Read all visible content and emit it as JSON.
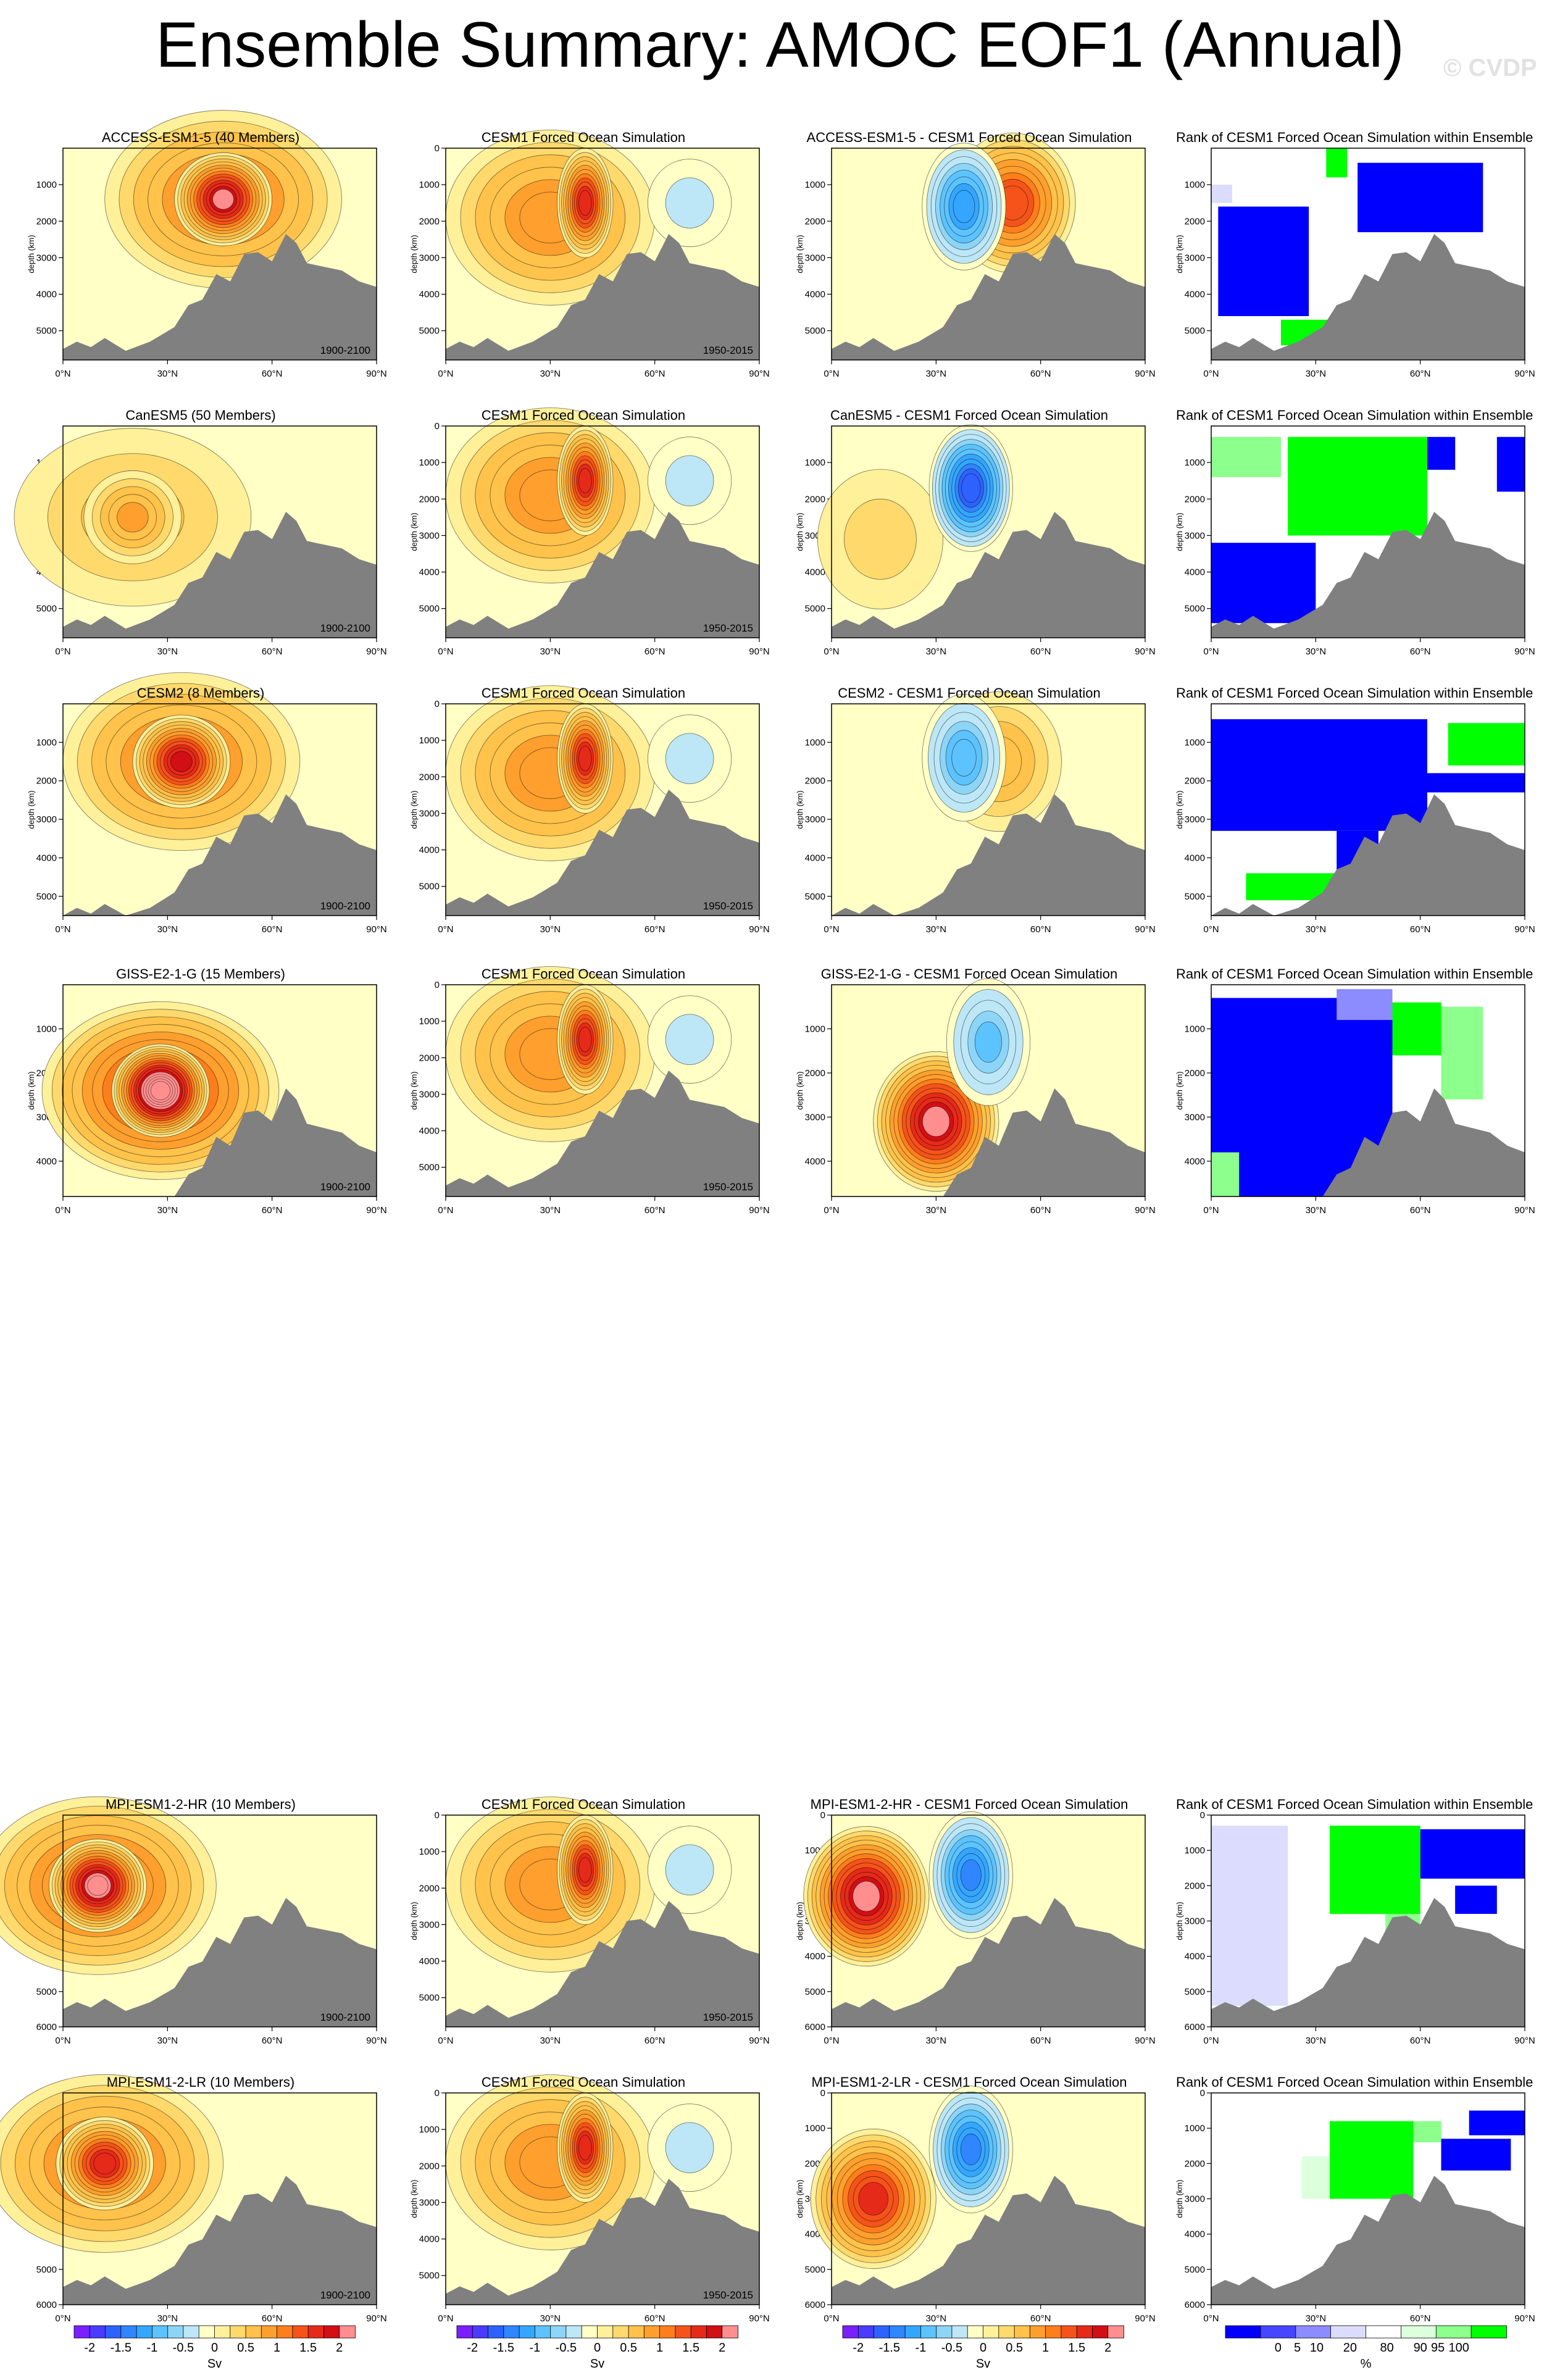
{
  "title": "Ensemble Summary: AMOC EOF1 (Annual)",
  "watermark": "© CVDP",
  "chart_data": {
    "type": "heatmap",
    "variable": "AMOC EOF1",
    "units": "Sv",
    "ylabel": "depth (km)",
    "xticks": [
      "0°N",
      "30°N",
      "60°N",
      "90°N"
    ],
    "xlim": [
      0,
      90
    ],
    "reference_period": "1950-2015",
    "reference_title": "CESM1 Forced Ocean Simulation",
    "rank_title": "Rank of CESM1 Forced Ocean Simulation within Ensemble",
    "rows": [
      {
        "ensemble_title": "ACCESS-ESM1-5 (40 Members)",
        "period": "1900-2100",
        "diff_title": "ACCESS-ESM1-5 - CESM1 Forced Ocean Simulation",
        "yticks": [
          "1000",
          "2000",
          "3000",
          "4000",
          "5000"
        ],
        "ylim": [
          0,
          5800
        ],
        "ensemble_max": {
          "lat": 46,
          "depth": 1400,
          "value": 1.9
        },
        "diff_min": {
          "lat": 38,
          "depth": 1600,
          "value": -1.2
        },
        "diff_max": {
          "lat": 52,
          "depth": 1500,
          "value": 1.4
        }
      },
      {
        "ensemble_title": "CanESM5 (50 Members)",
        "period": "1900-2100",
        "diff_title": "CanESM5 - CESM1 Forced Ocean Simulation",
        "yticks": [
          "1000",
          "2000",
          "3000",
          "4000",
          "5000"
        ],
        "ylim": [
          0,
          5800
        ],
        "ensemble_max": {
          "lat": 20,
          "depth": 2500,
          "value": 0.8
        },
        "diff_min": {
          "lat": 40,
          "depth": 1700,
          "value": -1.6
        },
        "diff_max": {
          "lat": 14,
          "depth": 3100,
          "value": 0.4
        }
      },
      {
        "ensemble_title": "CESM2 (8 Members)",
        "period": "1900-2100",
        "diff_title": "CESM2 - CESM1 Forced Ocean Simulation",
        "yticks": [
          "1000",
          "2000",
          "3000",
          "4000",
          "5000"
        ],
        "ylim": [
          0,
          5500
        ],
        "ensemble_max": {
          "lat": 34,
          "depth": 1500,
          "value": 1.8
        },
        "diff_min": {
          "lat": 38,
          "depth": 1400,
          "value": -1.0
        },
        "diff_max": {
          "lat": 48,
          "depth": 1500,
          "value": 0.6
        }
      },
      {
        "ensemble_title": "GISS-E2-1-G (15 Members)",
        "period": "1900-2100",
        "diff_title": "GISS-E2-1-G - CESM1 Forced Ocean Simulation",
        "yticks": [
          "1000",
          "2000",
          "3000",
          "4000"
        ],
        "ylim": [
          0,
          4800
        ],
        "ensemble_max": {
          "lat": 28,
          "depth": 2400,
          "value": 2.5
        },
        "diff_min": {
          "lat": 45,
          "depth": 1300,
          "value": -0.8
        },
        "diff_max": {
          "lat": 30,
          "depth": 3100,
          "value": 1.9
        }
      },
      {
        "ensemble_title": "MPI-ESM1-2-HR (10 Members)",
        "period": "1900-2100",
        "diff_title": "MPI-ESM1-2-HR - CESM1 Forced Ocean Simulation",
        "yticks": [
          "0",
          "1000",
          "2000",
          "3000",
          "4000",
          "5000",
          "6000"
        ],
        "ylim": [
          0,
          6000
        ],
        "ensemble_max": {
          "lat": 10,
          "depth": 2000,
          "value": 2.1
        },
        "diff_min": {
          "lat": 40,
          "depth": 1700,
          "value": -1.4
        },
        "diff_max": {
          "lat": 10,
          "depth": 2300,
          "value": 1.9
        }
      },
      {
        "ensemble_title": "MPI-ESM1-2-LR (10 Members)",
        "period": "1900-2100",
        "diff_title": "MPI-ESM1-2-LR - CESM1 Forced Ocean Simulation",
        "yticks": [
          "0",
          "1000",
          "2000",
          "3000",
          "4000",
          "5000",
          "6000"
        ],
        "ylim": [
          0,
          6000
        ],
        "ensemble_max": {
          "lat": 12,
          "depth": 2000,
          "value": 1.7
        },
        "diff_min": {
          "lat": 40,
          "depth": 1600,
          "value": -1.4
        },
        "diff_max": {
          "lat": 12,
          "depth": 3000,
          "value": 1.5
        }
      }
    ],
    "reference_yticks": [
      "0",
      "1000",
      "2000",
      "3000",
      "4000",
      "5000"
    ],
    "reference_max": {
      "lat": 40,
      "depth": 1500,
      "value": 1.7
    },
    "colorbars": {
      "sv": {
        "labels": [
          "-2",
          "-1.5",
          "-1",
          "-0.5",
          "0",
          "0.5",
          "1",
          "1.5",
          "2"
        ],
        "units": "Sv",
        "colors": [
          "#7a1fff",
          "#4a3bff",
          "#2e62ff",
          "#2f86ff",
          "#35a6ff",
          "#5cc3ff",
          "#8dd5f6",
          "#bde7f7",
          "#ffffc6",
          "#fff09a",
          "#ffd96c",
          "#ffc24a",
          "#ff9f2e",
          "#ff7e1c",
          "#f5531a",
          "#e62a19",
          "#d10f14",
          "#ff8f8f"
        ]
      },
      "rank": {
        "labels": [
          "0",
          "5",
          "10",
          "20",
          "80",
          "90",
          "95",
          "100"
        ],
        "units": "%",
        "colors": [
          "#0000ff",
          "#4646ff",
          "#8c8cff",
          "#dcdcff",
          "#ffffff",
          "#dcffdc",
          "#8cff8c",
          "#00ff00"
        ]
      }
    }
  }
}
